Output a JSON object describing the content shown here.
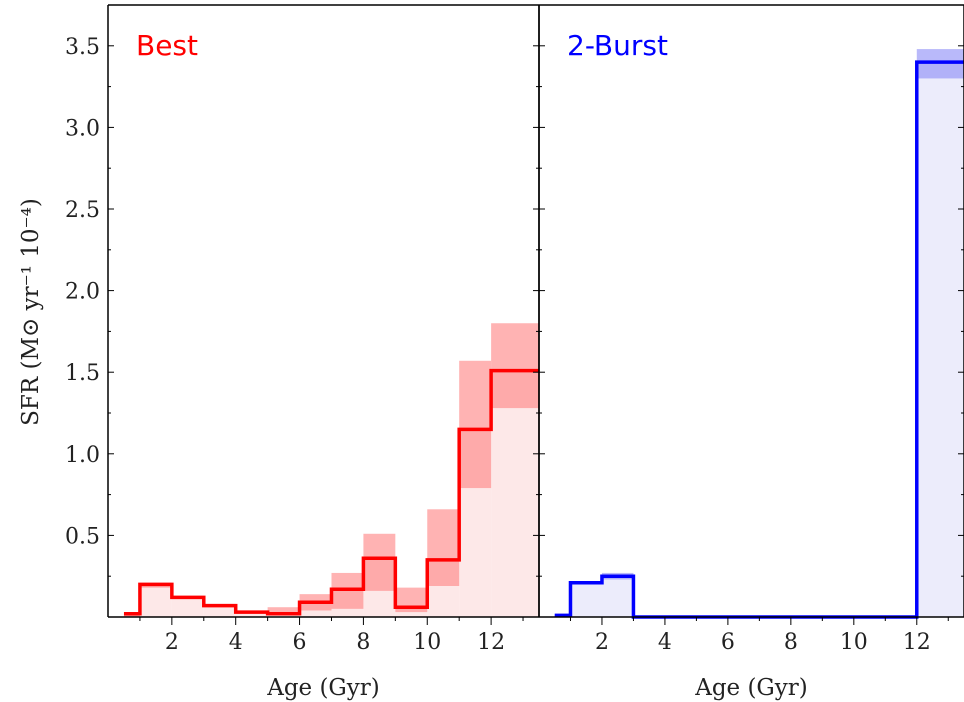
{
  "chart_data": [
    {
      "type": "area",
      "title": "Best",
      "title_color": "#ff0000",
      "line_color": "#ff0000",
      "band_color": "#ff8080",
      "fill_color": "#fde8e8",
      "xlabel": "Age (Gyr)",
      "ylabel": "SFR (M⊙ yr⁻¹ 10⁻⁴)",
      "xlim": [
        0,
        13.5
      ],
      "ylim": [
        0,
        3.75
      ],
      "xticks": [
        2,
        4,
        6,
        8,
        10,
        12
      ],
      "yticks": [
        0.5,
        1.0,
        1.5,
        2.0,
        2.5,
        3.0,
        3.5
      ],
      "bins": [
        {
          "x0": 0.5,
          "x1": 1,
          "sfr": 0.02,
          "lo": 0.0,
          "hi": 0.03
        },
        {
          "x0": 1,
          "x1": 2,
          "sfr": 0.2,
          "lo": 0.18,
          "hi": 0.21
        },
        {
          "x0": 2,
          "x1": 3,
          "sfr": 0.12,
          "lo": 0.11,
          "hi": 0.13
        },
        {
          "x0": 3,
          "x1": 4,
          "sfr": 0.07,
          "lo": 0.06,
          "hi": 0.08
        },
        {
          "x0": 4,
          "x1": 5,
          "sfr": 0.03,
          "lo": 0.02,
          "hi": 0.04
        },
        {
          "x0": 5,
          "x1": 6,
          "sfr": 0.02,
          "lo": 0.01,
          "hi": 0.06
        },
        {
          "x0": 6,
          "x1": 7,
          "sfr": 0.09,
          "lo": 0.04,
          "hi": 0.14
        },
        {
          "x0": 7,
          "x1": 8,
          "sfr": 0.17,
          "lo": 0.05,
          "hi": 0.27
        },
        {
          "x0": 8,
          "x1": 9,
          "sfr": 0.36,
          "lo": 0.16,
          "hi": 0.51
        },
        {
          "x0": 9,
          "x1": 10,
          "sfr": 0.06,
          "lo": 0.03,
          "hi": 0.18
        },
        {
          "x0": 10,
          "x1": 11,
          "sfr": 0.35,
          "lo": 0.19,
          "hi": 0.66
        },
        {
          "x0": 11,
          "x1": 12,
          "sfr": 1.15,
          "lo": 0.79,
          "hi": 1.57
        },
        {
          "x0": 12,
          "x1": 13.5,
          "sfr": 1.51,
          "lo": 1.28,
          "hi": 1.8
        }
      ]
    },
    {
      "type": "area",
      "title": "2-Burst",
      "title_color": "#0000ff",
      "line_color": "#0000ff",
      "band_color": "#8a8af7",
      "fill_color": "#ececfb",
      "xlabel": "Age (Gyr)",
      "ylabel": "",
      "xlim": [
        0,
        13.5
      ],
      "ylim": [
        0,
        3.75
      ],
      "xticks": [
        2,
        4,
        6,
        8,
        10,
        12
      ],
      "yticks": [],
      "bins": [
        {
          "x0": 0.5,
          "x1": 1,
          "sfr": 0.01,
          "lo": 0.0,
          "hi": 0.02
        },
        {
          "x0": 1,
          "x1": 2,
          "sfr": 0.21,
          "lo": 0.2,
          "hi": 0.22
        },
        {
          "x0": 2,
          "x1": 3,
          "sfr": 0.25,
          "lo": 0.23,
          "hi": 0.27
        },
        {
          "x0": 3,
          "x1": 12,
          "sfr": 0.0,
          "lo": 0.0,
          "hi": 0.0
        },
        {
          "x0": 12,
          "x1": 13.5,
          "sfr": 3.4,
          "lo": 3.3,
          "hi": 3.48
        }
      ]
    }
  ]
}
